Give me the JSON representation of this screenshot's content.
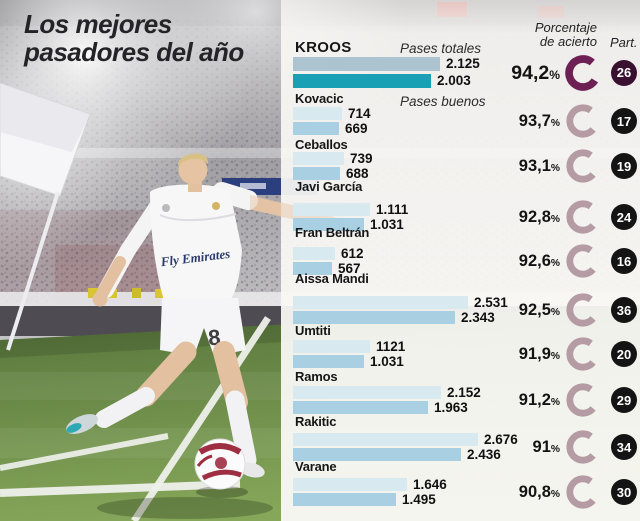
{
  "title": {
    "line1": "Los mejores",
    "line2": "pasadores del año"
  },
  "headers": {
    "percent_line1": "Porcentaje",
    "percent_line2": "de acierto",
    "participations": "Part."
  },
  "percent_symbol": "%",
  "photo": {
    "shirt_sponsor": "Fly Emirates",
    "shorts_number": "8"
  },
  "colors": {
    "highlight_ring": "#6e2054",
    "ring": "#b49ba4",
    "highlight_bar_totales": "#abc4d0",
    "highlight_bar_buenos": "#1aa0b5",
    "bar_totales": "#d9e9f0",
    "bar_buenos": "#a8d0e2",
    "badge": "#141414",
    "highlight_badge": "#3a1030",
    "text": "#161616"
  },
  "chart_data": {
    "type": "bar",
    "title": "Los mejores pasadores del año",
    "series_labels": [
      "Pases totales",
      "Pases buenos"
    ],
    "unit": "pases",
    "rows": [
      {
        "name": "KROOS",
        "highlight": true,
        "totales": 2125,
        "totales_label": "2.125",
        "buenos": 2003,
        "buenos_label": "2.003",
        "pct": 94.2,
        "pct_label": "94,2",
        "part": 26
      },
      {
        "name": "Kovacic",
        "totales": 714,
        "totales_label": "714",
        "buenos": 669,
        "buenos_label": "669",
        "pct": 93.7,
        "pct_label": "93,7",
        "part": 17
      },
      {
        "name": "Ceballos",
        "totales": 739,
        "totales_label": "739",
        "buenos": 688,
        "buenos_label": "688",
        "pct": 93.1,
        "pct_label": "93,1",
        "part": 19
      },
      {
        "name": "Javi García",
        "totales": 1111,
        "totales_label": "1.111",
        "buenos": 1031,
        "buenos_label": "1.031",
        "pct": 92.8,
        "pct_label": "92,8",
        "part": 24
      },
      {
        "name": "Fran Beltrán",
        "totales": 612,
        "totales_label": "612",
        "buenos": 567,
        "buenos_label": "567",
        "pct": 92.6,
        "pct_label": "92,6",
        "part": 16
      },
      {
        "name": "Aissa Mandi",
        "totales": 2531,
        "totales_label": "2.531",
        "buenos": 2343,
        "buenos_label": "2.343",
        "pct": 92.5,
        "pct_label": "92,5",
        "part": 36
      },
      {
        "name": "Umtiti",
        "totales": 1121,
        "totales_label": "1121",
        "buenos": 1031,
        "buenos_label": "1.031",
        "pct": 91.9,
        "pct_label": "91,9",
        "part": 20
      },
      {
        "name": "Ramos",
        "totales": 2152,
        "totales_label": "2.152",
        "buenos": 1963,
        "buenos_label": "1.963",
        "pct": 91.2,
        "pct_label": "91,2",
        "part": 29
      },
      {
        "name": "Rakitic",
        "totales": 2676,
        "totales_label": "2.676",
        "buenos": 2436,
        "buenos_label": "2.436",
        "pct": 91,
        "pct_label": "91",
        "part": 34
      },
      {
        "name": "Varane",
        "totales": 1646,
        "totales_label": "1.646",
        "buenos": 1495,
        "buenos_label": "1.495",
        "pct": 90.8,
        "pct_label": "90,8",
        "part": 30
      }
    ]
  }
}
